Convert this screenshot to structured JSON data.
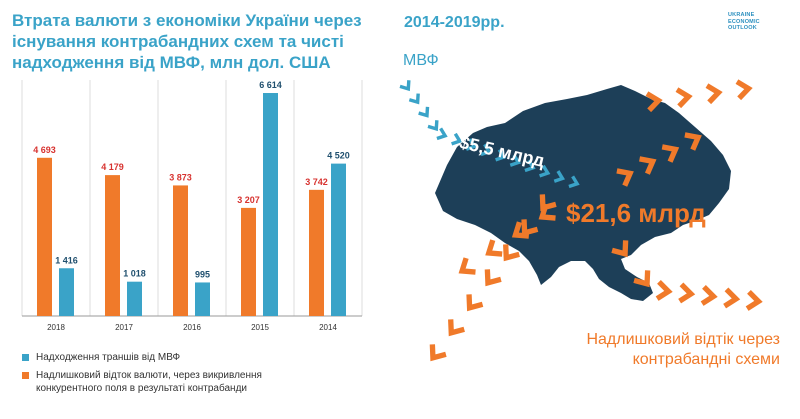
{
  "header": {
    "title": "Втрата валюти з економіки України через існування контрабандних схем та чисті надходження від МВФ, млн дол. США",
    "period": "2014-2019рр.",
    "logo_text": "Ukraine Economic Outlook"
  },
  "chart_data": {
    "type": "bar",
    "categories": [
      "2018",
      "2017",
      "2016",
      "2015",
      "2014"
    ],
    "series": [
      {
        "name": "Надлишковий відток валюти, через викривлення конкурентного поля в результаті контрабанди",
        "color": "#f07a2a",
        "label_color": "#d7322f",
        "values": [
          4693,
          4179,
          3873,
          3207,
          3742
        ]
      },
      {
        "name": "Надходження траншів від МВФ",
        "color": "#3aa3c8",
        "label_color": "#1f4f6e",
        "values": [
          1416,
          1018,
          995,
          6614,
          4520
        ]
      }
    ],
    "value_labels": [
      [
        "4 693",
        "4 179",
        "3 873",
        "3 207",
        "3 742"
      ],
      [
        "1 416",
        "1 018",
        "995",
        "6 614",
        "4 520"
      ]
    ],
    "ylim": [
      0,
      7000
    ],
    "grid": true,
    "legend_position": "bottom"
  },
  "legend": {
    "items": [
      {
        "label": "Надходження траншів від МВФ",
        "color": "#3aa3c8"
      },
      {
        "label": "Надлишковий відток валюти, через викривлення конкурентного поля в результаті контрабанди",
        "color": "#f07a2a"
      }
    ]
  },
  "map": {
    "imf_label": "МВФ",
    "inflow_value": "$5,5 млрд",
    "outflow_value": "$21,6 млрд",
    "caption": "Надлишковий відтік через контрабандні схеми",
    "colors": {
      "country": "#1d3f58",
      "inflow": "#3aa3c8",
      "outflow": "#f07a2a"
    }
  }
}
